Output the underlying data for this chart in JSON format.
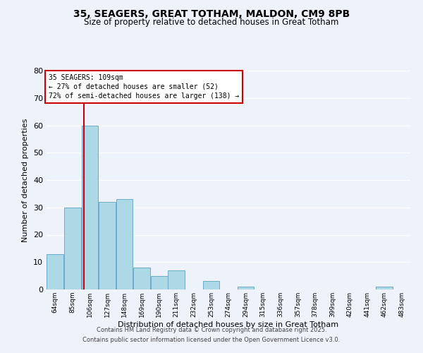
{
  "title1": "35, SEAGERS, GREAT TOTHAM, MALDON, CM9 8PB",
  "title2": "Size of property relative to detached houses in Great Totham",
  "xlabel": "Distribution of detached houses by size in Great Totham",
  "ylabel": "Number of detached properties",
  "bar_labels": [
    "64sqm",
    "85sqm",
    "106sqm",
    "127sqm",
    "148sqm",
    "169sqm",
    "190sqm",
    "211sqm",
    "232sqm",
    "253sqm",
    "274sqm",
    "294sqm",
    "315sqm",
    "336sqm",
    "357sqm",
    "378sqm",
    "399sqm",
    "420sqm",
    "441sqm",
    "462sqm",
    "483sqm"
  ],
  "bar_values": [
    13,
    30,
    60,
    32,
    33,
    8,
    5,
    7,
    0,
    3,
    0,
    1,
    0,
    0,
    0,
    0,
    0,
    0,
    0,
    1,
    0
  ],
  "bar_color": "#add8e6",
  "bar_edge_color": "#6aabcc",
  "annotation_title": "35 SEAGERS: 109sqm",
  "annotation_line1": "← 27% of detached houses are smaller (52)",
  "annotation_line2": "72% of semi-detached houses are larger (138) →",
  "vline_color": "#cc0000",
  "ylim": [
    0,
    80
  ],
  "yticks": [
    0,
    10,
    20,
    30,
    40,
    50,
    60,
    70,
    80
  ],
  "background_color": "#eef2fb",
  "grid_color": "#ffffff",
  "footnote1": "Contains HM Land Registry data © Crown copyright and database right 2025.",
  "footnote2": "Contains public sector information licensed under the Open Government Licence v3.0."
}
